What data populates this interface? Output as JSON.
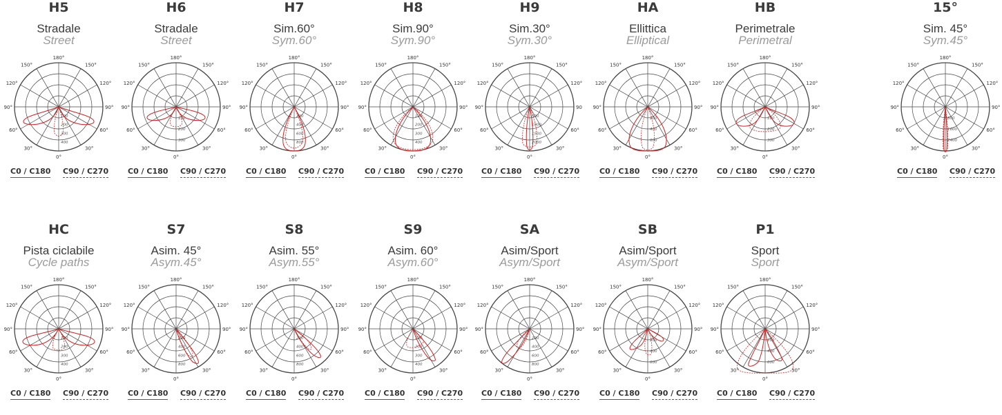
{
  "legend": {
    "c0": "C0 / C180",
    "c90": "C90 / C270"
  },
  "curve_color": "#d42020",
  "diagrams": [
    {
      "code": "H5",
      "it": "Stradale",
      "en": "Street",
      "angles": {
        "a180": "180°",
        "a150l": "150°",
        "a150r": "150°",
        "a120l": "120°",
        "a120r": "120°",
        "a90l": "90°",
        "a90r": "90°",
        "a60l": "60°",
        "a60r": "60°",
        "a30l": "30°",
        "a30r": "30°",
        "a0": "0°"
      },
      "scale": [
        "100",
        "200",
        "300",
        "400"
      ]
    },
    {
      "code": "H6",
      "it": "Stradale",
      "en": "Street",
      "angles": {
        "a180": "180°",
        "a150l": "150°",
        "a150r": "150°",
        "a120l": "120°",
        "a120r": "120°",
        "a90l": "90°",
        "a90r": "90°",
        "a60l": "60°",
        "a60r": "60°",
        "a30l": "30°",
        "a30r": "30°",
        "a0": "0°"
      },
      "scale": [
        "100",
        "200",
        "300"
      ]
    },
    {
      "code": "H7",
      "it": "Sim.60°",
      "en": "Sym.60°",
      "angles": {
        "a180": "180°",
        "a150l": "150°",
        "a150r": "150°",
        "a120l": "120°",
        "a120r": "120°",
        "a90l": "90°",
        "a90r": "90°",
        "a60l": "60°",
        "a60r": "60°",
        "a30l": "30°",
        "a30r": "30°",
        "a0": "0°"
      },
      "scale": [
        "200",
        "400",
        "600",
        "800"
      ]
    },
    {
      "code": "H8",
      "it": "Sim.90°",
      "en": "Sym.90°",
      "angles": {
        "a180": "180°",
        "a150l": "150°",
        "a150r": "150°",
        "a120l": "120°",
        "a120r": "120°",
        "a90l": "90°",
        "a90r": "90°",
        "a60l": "60°",
        "a60r": "60°",
        "a30l": "30°",
        "a30r": "30°",
        "a0": "0°"
      },
      "scale": [
        "100",
        "200",
        "300",
        "400"
      ]
    },
    {
      "code": "H9",
      "it": "Sim.30°",
      "en": "Sym.30°",
      "angles": {
        "a180": "180°",
        "a150l": "150°",
        "a150r": "150°",
        "a120l": "120°",
        "a120r": "120°",
        "a90l": "90°",
        "a90r": "90",
        "a60l": "60°",
        "a60r": "60°",
        "a30l": "30°",
        "a30r": "30°",
        "a0": "0°"
      },
      "scale": [
        "500",
        "1000",
        "1500",
        "2000"
      ]
    },
    {
      "code": "HA",
      "it": "Ellittica",
      "en": "Elliptical",
      "angles": {
        "a180": "180°",
        "a150l": "150°",
        "a150r": "150°",
        "a120l": "120°",
        "a120r": "120°",
        "a90l": "90°",
        "a90r": "90°",
        "a60l": "60°",
        "a60r": "60°",
        "a30l": "30°",
        "a30r": "30°",
        "a0": "0°"
      },
      "scale": [
        "200",
        "400",
        "600"
      ]
    },
    {
      "code": "HB",
      "it": "Perimetrale",
      "en": "Perimetral",
      "angles": {
        "a180": "180°",
        "a150l": "150°",
        "a150r": "150°",
        "a120l": "120°",
        "a120r": "120°",
        "a90l": "90°",
        "a90r": "90°",
        "a60l": "60°",
        "a60r": "60°",
        "a30l": "30°",
        "a30r": "30°",
        "a0": "0°"
      },
      "scale": [
        "100",
        "200",
        "300"
      ]
    },
    {
      "code": "15°",
      "it": "Sim. 45°",
      "en": "Sym.45°",
      "angles": {
        "a180": "180°",
        "a150l": "150°",
        "a150r": "150°",
        "a120l": "120°",
        "a120r": "120°",
        "a90l": "90°",
        "a90r": "90°",
        "a60l": "60°",
        "a60r": "60°",
        "a30l": "30°",
        "a30r": "30°",
        "a0": "0°"
      },
      "scale": [
        "800",
        "1600",
        "2400"
      ]
    },
    {
      "code": "HC",
      "it": "Pista ciclabile",
      "en": "Cycle paths",
      "angles": {
        "a180": "180°",
        "a150l": "150°",
        "a150r": "150°",
        "a120l": "120°",
        "a120r": "120°",
        "a90l": "90°",
        "a90r": "90°",
        "a60l": "60°",
        "a60r": "60°",
        "a30l": "30°",
        "a30r": "30°",
        "a0": "0°"
      },
      "scale": [
        "100",
        "200",
        "300",
        "400"
      ]
    },
    {
      "code": "S7",
      "it": "Asim. 45°",
      "en": "Asym.45°",
      "angles": {
        "a180": "180°",
        "a150l": "150°",
        "a150r": "150°",
        "a120l": "120°",
        "a120r": "120°",
        "a90l": "90°",
        "a90r": "90°",
        "a60l": "60°",
        "a60r": "60°",
        "a30l": "30°",
        "a30r": "30°",
        "a0": "0°"
      },
      "scale": [
        "200",
        "400",
        "600",
        "800"
      ]
    },
    {
      "code": "S8",
      "it": "Asim. 55°",
      "en": "Asym.55°",
      "angles": {
        "a180": "180°",
        "a150l": "150°",
        "a150r": "150°",
        "a120l": "120°",
        "a120r": "120°",
        "a90l": "90°",
        "a90r": "90°",
        "a60l": "60°",
        "a60r": "60°",
        "a30l": "30°",
        "a30r": "30°",
        "a0": "0°"
      },
      "scale": [
        "200",
        "400",
        "600",
        "800"
      ]
    },
    {
      "code": "S9",
      "it": "Asim. 60°",
      "en": "Asym.60°",
      "angles": {
        "a180": "180°",
        "a150l": "150°",
        "a150r": "150°",
        "a120l": "120°",
        "a120r": "120°",
        "a90l": "90°",
        "a90r": "90°",
        "a60l": "60°",
        "a60r": "60°",
        "a30l": "30°",
        "a30r": "30°",
        "a0": "0°"
      },
      "scale": [
        "100",
        "200",
        "300",
        "400"
      ]
    },
    {
      "code": "SA",
      "it": "Asim/Sport",
      "en": "Asym/Sport",
      "angles": {
        "a180": "180°",
        "a150l": "150°",
        "a150r": "150°",
        "a120l": "120°",
        "a120r": "120°",
        "a90l": "90°",
        "a90r": "90°",
        "a60l": "60°",
        "a60r": "60°",
        "a30l": "30°",
        "a30r": "30°",
        "a0": "0°"
      },
      "scale": [
        "200",
        "400",
        "600",
        "800"
      ]
    },
    {
      "code": "SB",
      "it": "Asim/Sport",
      "en": "Asym/Sport",
      "angles": {
        "a180": "180°",
        "a150l": "150°",
        "a150r": "150°",
        "a120l": "120°",
        "a120r": "120°",
        "a90l": "90°",
        "a90r": "90°",
        "a60l": "60°",
        "a60r": "60°",
        "a30l": "30°",
        "a30r": "30°",
        "a0": "0°"
      },
      "scale": [
        "200",
        "400",
        "600"
      ]
    },
    {
      "code": "P1",
      "it": "Sport",
      "en": "Sport",
      "angles": {
        "a180": "180°",
        "a150l": "150°",
        "a150r": "150°",
        "a120l": "120°",
        "a120r": "120°",
        "a90l": "90°",
        "a90r": "90°",
        "a60l": "60°",
        "a60r": "60°",
        "a30l": "30°",
        "a30r": "30°",
        "a0": "0°"
      },
      "scale": [
        "200",
        "400",
        "600"
      ]
    }
  ]
}
